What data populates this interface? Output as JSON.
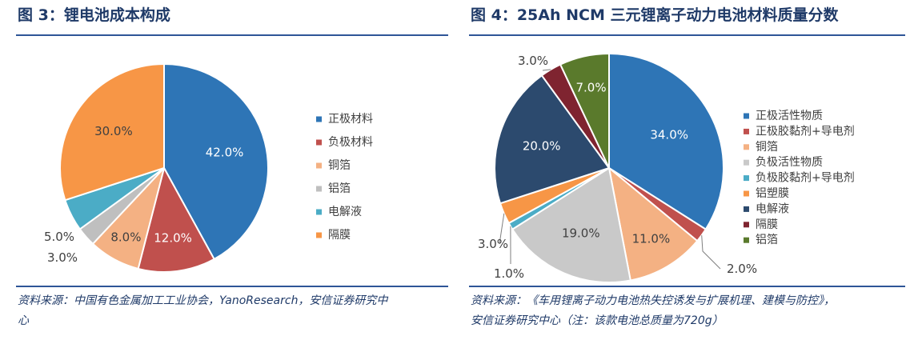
{
  "left": {
    "title": "图 3：锂电池成本构成",
    "source_line1": "资料来源：中国有色金属加工工业协会，YanoResearch，安信证券研究中",
    "source_line2": "心"
  },
  "right": {
    "title": "图 4：25Ah NCM 三元锂离子动力电池材料质量分数",
    "source_line1": "资料来源：《车用锂离子动力电池热失控诱发与扩展机理、建模与防控》，",
    "source_line2": "安信证券研究中心（注：该款电池总质量为720g）"
  },
  "chart_data": [
    {
      "type": "pie",
      "title": "",
      "start": "12 o'clock, clockwise",
      "legend_position": "right",
      "categories": [
        "正极材料",
        "负极材料",
        "铜箔",
        "铝箔",
        "电解液",
        "隔膜"
      ],
      "values": [
        42.0,
        12.0,
        8.0,
        3.0,
        5.0,
        30.0
      ],
      "labels": [
        "42.0%",
        "12.0%",
        "8.0%",
        "3.0%",
        "5.0%",
        "30.0%"
      ],
      "colors": [
        "#2e75b6",
        "#c0504d",
        "#f4b183",
        "#bfbfbf",
        "#4bacc6",
        "#f79646"
      ]
    },
    {
      "type": "pie",
      "title": "",
      "start": "12 o'clock, clockwise",
      "legend_position": "right",
      "categories": [
        "正极活性物质",
        "正极胶黏剂+导电剂",
        "铜箔",
        "负极活性物质",
        "负极胶黏剂+导电剂",
        "铝塑膜",
        "电解液",
        "隔膜",
        "铝箔"
      ],
      "values": [
        34.0,
        2.0,
        11.0,
        19.0,
        1.0,
        3.0,
        20.0,
        3.0,
        7.0
      ],
      "labels": [
        "34.0%",
        "2.0%",
        "11.0%",
        "19.0%",
        "1.0%",
        "3.0%",
        "20.0%",
        "3.0%",
        "7.0%"
      ],
      "colors": [
        "#2e75b6",
        "#c0504d",
        "#f4b183",
        "#c9c9c9",
        "#4bacc6",
        "#f79646",
        "#2c4a6e",
        "#7f2430",
        "#5a7a2c"
      ]
    }
  ]
}
